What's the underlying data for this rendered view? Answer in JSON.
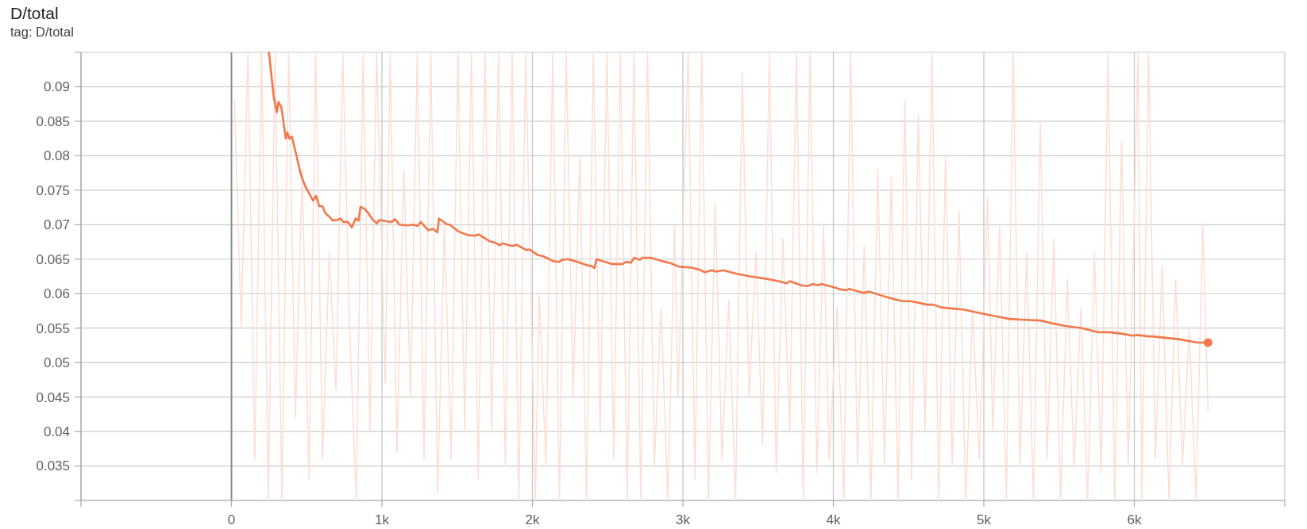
{
  "chart_data": {
    "type": "line",
    "title": "D/total",
    "subtitle": "tag: D/total",
    "xlim": [
      -1000,
      7000
    ],
    "ylim": [
      0.03,
      0.095
    ],
    "xticks": [
      {
        "value": -1000,
        "label": null
      },
      0,
      {
        "value": 1000,
        "label": "1k"
      },
      {
        "value": 2000,
        "label": "2k"
      },
      {
        "value": 3000,
        "label": "3k"
      },
      {
        "value": 4000,
        "label": "4k"
      },
      {
        "value": 5000,
        "label": "5k"
      },
      {
        "value": 6000,
        "label": "6k"
      },
      {
        "value": 7000,
        "label": null
      }
    ],
    "yticks": [
      {
        "value": 0.03,
        "label": null
      },
      0.035,
      0.04,
      0.045,
      0.05,
      0.055,
      0.06,
      0.065,
      0.07,
      0.075,
      0.08,
      0.085,
      0.09,
      {
        "value": 0.095,
        "label": null
      }
    ],
    "grid": true,
    "series": [
      {
        "color": "#fcded3",
        "x": [
          20,
          65,
          110,
          155,
          200,
          245,
          290,
          335,
          380,
          425,
          470,
          515,
          560,
          605,
          650,
          695,
          740,
          785,
          830,
          875,
          920,
          965,
          1022,
          1055,
          1100,
          1145,
          1190,
          1235,
          1280,
          1325,
          1370,
          1415,
          1460,
          1505,
          1550,
          1595,
          1640,
          1685,
          1730,
          1775,
          1820,
          1865,
          1910,
          1955,
          2020,
          2045,
          2090,
          2135,
          2180,
          2225,
          2270,
          2315,
          2360,
          2405,
          2450,
          2495,
          2540,
          2585,
          2630,
          2675,
          2720,
          2765,
          2810,
          2855,
          2900,
          2945,
          2968,
          3035,
          3080,
          3125,
          3170,
          3215,
          3260,
          3305,
          3350,
          3395,
          3440,
          3485,
          3530,
          3575,
          3620,
          3665,
          3710,
          3755,
          3800,
          3845,
          3890,
          3935,
          3972,
          4025,
          4070,
          4115,
          4160,
          4205,
          4250,
          4295,
          4340,
          4385,
          4430,
          4475,
          4520,
          4565,
          4610,
          4655,
          4700,
          4745,
          4790,
          4835,
          4880,
          4925,
          4970,
          5025,
          5060,
          5105,
          5150,
          5195,
          5240,
          5285,
          5330,
          5375,
          5420,
          5465,
          5510,
          5555,
          5600,
          5645,
          5690,
          5735,
          5780,
          5825,
          5870,
          5915,
          5960,
          6025,
          6050,
          6095,
          6140,
          6185,
          6230,
          6275,
          6320,
          6365,
          6410,
          6455,
          6490
        ],
        "values": [
          0.088,
          0.055,
          0.095,
          0.036,
          0.095,
          0.03,
          0.095,
          0.03,
          0.095,
          0.042,
          0.078,
          0.033,
          0.095,
          0.036,
          0.066,
          0.046,
          0.095,
          0.055,
          0.03,
          0.095,
          0.04,
          0.095,
          0.047,
          0.095,
          0.037,
          0.078,
          0.045,
          0.095,
          0.036,
          0.095,
          0.031,
          0.07,
          0.036,
          0.095,
          0.04,
          0.095,
          0.033,
          0.095,
          0.04,
          0.095,
          0.035,
          0.095,
          0.03,
          0.095,
          0.03,
          0.06,
          0.035,
          0.095,
          0.03,
          0.095,
          0.045,
          0.08,
          0.03,
          0.095,
          0.04,
          0.095,
          0.036,
          0.095,
          0.03,
          0.095,
          0.03,
          0.095,
          0.035,
          0.058,
          0.03,
          0.07,
          0.045,
          0.095,
          0.033,
          0.095,
          0.03,
          0.073,
          0.036,
          0.059,
          0.03,
          0.092,
          0.045,
          0.066,
          0.038,
          0.095,
          0.034,
          0.068,
          0.04,
          0.095,
          0.03,
          0.095,
          0.034,
          0.07,
          0.036,
          0.058,
          0.03,
          0.095,
          0.035,
          0.067,
          0.03,
          0.078,
          0.035,
          0.077,
          0.03,
          0.088,
          0.033,
          0.086,
          0.04,
          0.095,
          0.03,
          0.08,
          0.035,
          0.072,
          0.03,
          0.058,
          0.036,
          0.074,
          0.04,
          0.07,
          0.03,
          0.095,
          0.035,
          0.066,
          0.03,
          0.085,
          0.036,
          0.068,
          0.03,
          0.062,
          0.035,
          0.058,
          0.03,
          0.066,
          0.034,
          0.095,
          0.03,
          0.082,
          0.035,
          0.095,
          0.03,
          0.095,
          0.036,
          0.064,
          0.03,
          0.062,
          0.035,
          0.055,
          0.03,
          0.07,
          0.043
        ]
      },
      {
        "color": "#f2784b",
        "x": [
          249,
          280,
          301,
          313,
          331,
          361,
          371,
          385,
          401,
          431,
          462,
          492,
          505,
          542,
          562,
          583,
          604,
          623,
          653,
          673,
          704,
          724,
          744,
          774,
          800,
          825,
          845,
          857,
          885,
          909,
          935,
          965,
          985,
          1026,
          1066,
          1087,
          1117,
          1167,
          1207,
          1237,
          1258,
          1308,
          1338,
          1369,
          1379,
          1429,
          1449,
          1510,
          1570,
          1620,
          1641,
          1716,
          1753,
          1782,
          1801,
          1867,
          1895,
          1961,
          1980,
          2036,
          2074,
          2140,
          2178,
          2197,
          2234,
          2300,
          2365,
          2394,
          2412,
          2427,
          2469,
          2525,
          2600,
          2619,
          2656,
          2676,
          2713,
          2732,
          2788,
          2864,
          2920,
          2976,
          3051,
          3108,
          3146,
          3193,
          3221,
          3268,
          3353,
          3447,
          3541,
          3635,
          3692,
          3710,
          3786,
          3833,
          3861,
          3899,
          3917,
          3992,
          4049,
          4087,
          4106,
          4199,
          4237,
          4369,
          4461,
          4516,
          4626,
          4663,
          4717,
          4809,
          4864,
          4993,
          5085,
          5176,
          5195,
          5268,
          5378,
          5451,
          5542,
          5652,
          5762,
          5836,
          5910,
          5992,
          6020,
          6093,
          6120,
          6203,
          6294,
          6368,
          6423,
          6490
        ],
        "values": [
          0.095,
          0.0887,
          0.0863,
          0.0878,
          0.0871,
          0.0825,
          0.0834,
          0.0825,
          0.0828,
          0.0801,
          0.0772,
          0.0755,
          0.075,
          0.0735,
          0.0742,
          0.0727,
          0.0727,
          0.0717,
          0.0711,
          0.0706,
          0.0707,
          0.0709,
          0.0704,
          0.0704,
          0.0696,
          0.0709,
          0.0706,
          0.0726,
          0.0723,
          0.0717,
          0.0708,
          0.0702,
          0.0707,
          0.0705,
          0.0704,
          0.0708,
          0.07,
          0.0699,
          0.07,
          0.0698,
          0.0704,
          0.0692,
          0.0694,
          0.0689,
          0.0709,
          0.0701,
          0.07,
          0.069,
          0.0685,
          0.0684,
          0.0686,
          0.0676,
          0.0674,
          0.067,
          0.0673,
          0.0669,
          0.0671,
          0.0663,
          0.0664,
          0.0656,
          0.0654,
          0.0647,
          0.0646,
          0.0649,
          0.065,
          0.0646,
          0.0641,
          0.064,
          0.0637,
          0.065,
          0.0647,
          0.0643,
          0.0643,
          0.0646,
          0.0645,
          0.0652,
          0.0649,
          0.0652,
          0.0652,
          0.0647,
          0.0644,
          0.0639,
          0.0638,
          0.0635,
          0.0631,
          0.0634,
          0.0632,
          0.0634,
          0.0629,
          0.0625,
          0.0622,
          0.0618,
          0.0615,
          0.0618,
          0.0612,
          0.0611,
          0.0614,
          0.0612,
          0.0614,
          0.061,
          0.0606,
          0.0605,
          0.0607,
          0.0601,
          0.0603,
          0.0594,
          0.0589,
          0.0589,
          0.0584,
          0.0584,
          0.058,
          0.0578,
          0.0577,
          0.0571,
          0.0567,
          0.0563,
          0.0563,
          0.0562,
          0.0561,
          0.0557,
          0.0553,
          0.055,
          0.0544,
          0.0544,
          0.0542,
          0.0539,
          0.054,
          0.0538,
          0.0538,
          0.0536,
          0.0534,
          0.0531,
          0.0529,
          0.0529
        ]
      },
      {
        "type": "scatter",
        "color": "#f2784b",
        "x": [
          6490
        ],
        "values": [
          0.0529
        ]
      }
    ]
  }
}
